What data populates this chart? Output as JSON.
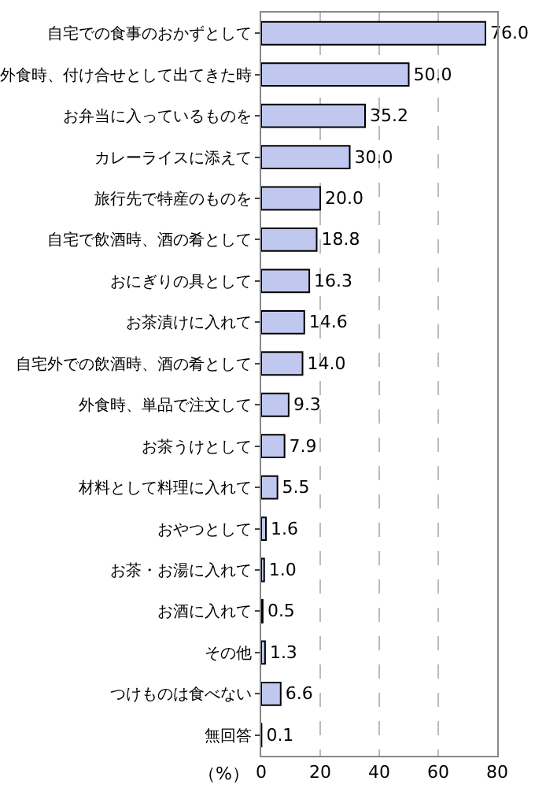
{
  "chart_data": {
    "type": "bar",
    "orientation": "horizontal",
    "xlabel": "（%）",
    "categories": [
      "自宅での食事のおかずとして",
      "外食時、付け合せとして出てきた時",
      "お弁当に入っているものを",
      "カレーライスに添えて",
      "旅行先で特産のものを",
      "自宅で飲酒時、酒の肴として",
      "おにぎりの具として",
      "お茶漬けに入れて",
      "自宅外での飲酒時、酒の肴として",
      "外食時、単品で注文して",
      "お茶うけとして",
      "材料として料理に入れて",
      "おやつとして",
      "お茶・お湯に入れて",
      "お酒に入れて",
      "その他",
      "つけものは食べない",
      "無回答"
    ],
    "values": [
      76.0,
      50.0,
      35.2,
      30.0,
      20.0,
      18.8,
      16.3,
      14.6,
      14.0,
      9.3,
      7.9,
      5.5,
      1.6,
      1.0,
      0.5,
      1.3,
      6.6,
      0.1
    ],
    "value_labels": [
      "76.0",
      "50.0",
      "35.2",
      "30.0",
      "20.0",
      "18.8",
      "16.3",
      "14.6",
      "14.0",
      "9.3",
      "7.9",
      "5.5",
      "1.6",
      "1.0",
      "0.5",
      "1.3",
      "6.6",
      "0.1"
    ],
    "color": "#c0c8f0",
    "xlim": [
      0,
      80
    ],
    "xticks": [
      0,
      20,
      40,
      60,
      80
    ],
    "grid": "x"
  }
}
